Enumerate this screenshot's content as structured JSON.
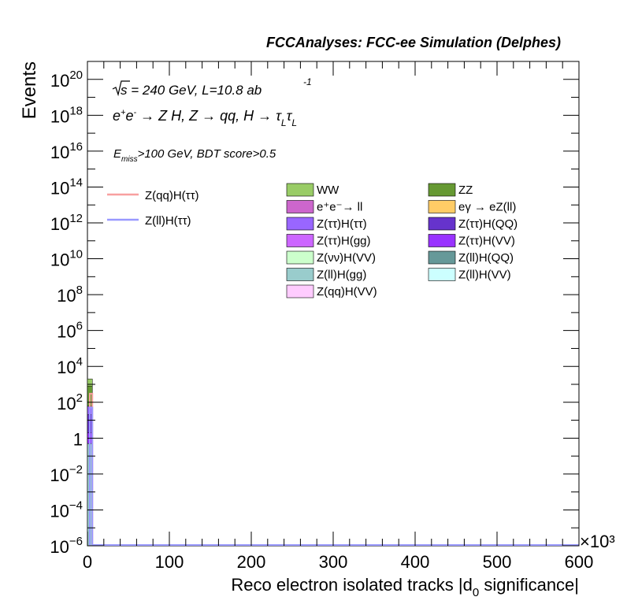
{
  "header": {
    "title": "FCCAnalyses: FCC-ee Simulation (Delphes)"
  },
  "annotations": {
    "energy_line": "s = 240 GeV, L=10.8 ab",
    "lumi_exp": "-1",
    "process_line": "e+e- → Z H, Z → qq, H → τLτL",
    "cuts_line": "Emiss>100 GeV, BDT score>0.5"
  },
  "chart_data": {
    "type": "bar",
    "xlabel": "Reco electron isolated tracks |d0 significance|",
    "ylabel": "Events",
    "x_multiplier": "×10³",
    "xlim": [
      0,
      600
    ],
    "ylim": [
      1e-06,
      1e+21
    ],
    "yscale": "log",
    "x_ticks": [
      0,
      100,
      200,
      300,
      400,
      500,
      600
    ],
    "y_ticks": [
      "10⁻⁶",
      "10⁻⁴",
      "10⁻²",
      "1",
      "10²",
      "10⁴",
      "10⁶",
      "10⁸",
      "10¹⁰",
      "10¹²",
      "10¹⁴",
      "10¹⁶",
      "10¹⁸",
      "10²⁰"
    ],
    "grid": false,
    "legend_placement": "top",
    "signal_series": [
      {
        "name": "Z(qq)H(ττ)",
        "color": "#f8a0a0",
        "x": [
          0,
          6
        ],
        "values": [
          300,
          300
        ]
      },
      {
        "name": "Z(ll)H(ττ)",
        "color": "#9999ff",
        "x": [
          0,
          6
        ],
        "values": [
          50,
          50
        ]
      }
    ],
    "stacked_series": [
      {
        "name": "WW",
        "color": "#99cc66",
        "x0": 0,
        "x1": 6,
        "top": 2000
      },
      {
        "name": "ZZ",
        "color": "#669933",
        "x0": 0,
        "x1": 6,
        "top": 800
      },
      {
        "name": "e⁺e⁻→ ll",
        "color": "#cc66cc"
      },
      {
        "name": "eγ → eZ(ll)",
        "color": "#ffcc66"
      },
      {
        "name": "Z(ττ)H(ττ)",
        "color": "#9966ff",
        "x0": 0,
        "x1": 6,
        "top": 60
      },
      {
        "name": "Z(ττ)H(QQ)",
        "color": "#6633cc",
        "x0": 0,
        "x1": 6,
        "top": 20
      },
      {
        "name": "Z(ττ)H(gg)",
        "color": "#cc66ff"
      },
      {
        "name": "Z(ττ)H(VV)",
        "color": "#9933ff",
        "x0": 0,
        "x1": 6,
        "top": 2
      },
      {
        "name": "Z(νν)H(VV)",
        "color": "#ccffcc"
      },
      {
        "name": "Z(ll)H(QQ)",
        "color": "#669999"
      },
      {
        "name": "Z(ll)H(gg)",
        "color": "#99cccc",
        "x0": 0,
        "x1": 6,
        "top": 0.5
      },
      {
        "name": "Z(ll)H(VV)",
        "color": "#ccffff"
      },
      {
        "name": "Z(qq)H(VV)",
        "color": "#ffccff"
      }
    ]
  }
}
